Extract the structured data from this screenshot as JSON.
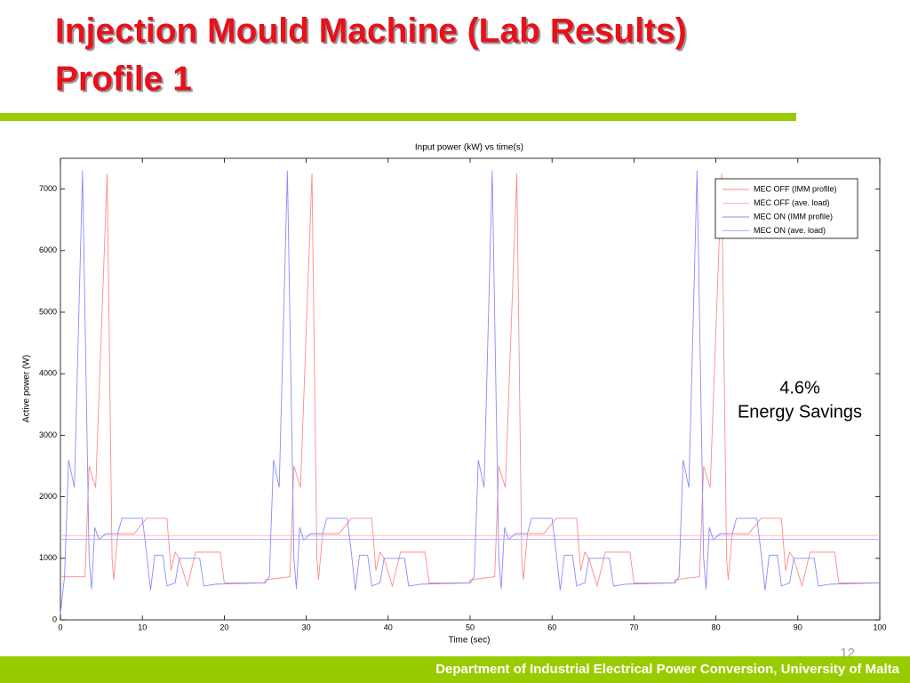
{
  "slide": {
    "title_lines": [
      "Injection Mould Machine (Lab Results)",
      "Profile 1"
    ],
    "footer": "Department of Industrial Electrical Power Conversion, University of Malta",
    "page_number": "12"
  },
  "chart_data": {
    "type": "line",
    "title": "Input power (kW) vs time(s)",
    "x_label": "Time (sec)",
    "y_label": "Active power (W)",
    "xlim": [
      0,
      100
    ],
    "xticks": [
      0,
      10,
      20,
      30,
      40,
      50,
      60,
      70,
      80,
      90,
      100
    ],
    "ylim": [
      0,
      7500
    ],
    "yticks": [
      0,
      1000,
      2000,
      3000,
      4000,
      5000,
      6000,
      7000
    ],
    "grid": false,
    "legend": "top-right",
    "annotations": [
      "4.6%",
      "Energy Savings"
    ],
    "series": [
      {
        "name": "MEC OFF (IMM profile)",
        "color": "#ff8a8a",
        "x": [
          0,
          3,
          3.5,
          4.3,
          5.7,
          6.3,
          6.5,
          7,
          9,
          10.5,
          13,
          13.5,
          14,
          14.5,
          15.5,
          16.5,
          19.5,
          20,
          24.9,
          25,
          28,
          28.5,
          29.3,
          30.7,
          31.3,
          31.5,
          32,
          34,
          35.5,
          38,
          38.5,
          39,
          39.5,
          40.5,
          41.5,
          44.5,
          45,
          49.9,
          50,
          53,
          53.5,
          54.3,
          55.7,
          56.3,
          56.5,
          57,
          59,
          60.5,
          63,
          63.5,
          64,
          64.5,
          65.5,
          66.5,
          69.5,
          70,
          74.9,
          75,
          78,
          78.5,
          79.3,
          80.7,
          81.3,
          81.5,
          82,
          84,
          85.5,
          88,
          88.5,
          89,
          89.5,
          90.5,
          91.5,
          94.5,
          95,
          99.9
        ],
        "values": [
          700,
          700,
          2500,
          2150,
          7250,
          1000,
          650,
          1400,
          1400,
          1650,
          1650,
          800,
          1100,
          1000,
          550,
          1100,
          1100,
          600,
          600,
          650,
          700,
          2500,
          2150,
          7250,
          1000,
          650,
          1400,
          1400,
          1650,
          1650,
          800,
          1100,
          1000,
          550,
          1100,
          1100,
          600,
          600,
          650,
          700,
          2500,
          2150,
          7250,
          1000,
          650,
          1400,
          1400,
          1650,
          1650,
          800,
          1100,
          1000,
          550,
          1100,
          1100,
          600,
          600,
          650,
          700,
          2500,
          2150,
          7250,
          1000,
          650,
          1400,
          1400,
          1650,
          1650,
          800,
          1100,
          1000,
          550,
          1100,
          1100,
          600,
          600
        ]
      },
      {
        "name": "MEC OFF (ave. load)",
        "color": "#ffb0b0",
        "x": [
          0,
          100
        ],
        "values": [
          1370,
          1370
        ]
      },
      {
        "name": "MEC ON (IMM profile)",
        "color": "#8a8aff",
        "x": [
          0,
          0.5,
          1,
          1.7,
          2.7,
          3.5,
          3.8,
          4.2,
          4.7,
          5.5,
          7,
          7.5,
          10,
          10.5,
          11,
          11.5,
          12.5,
          13,
          14,
          14.5,
          17,
          17.5,
          19,
          24.9,
          25,
          25.5,
          26,
          26.7,
          27.7,
          28.5,
          28.8,
          29.2,
          29.7,
          30.5,
          32,
          32.5,
          35,
          35.5,
          36,
          36.5,
          37.5,
          38,
          39,
          39.5,
          42,
          42.5,
          44,
          49.9,
          50,
          50.5,
          51,
          51.7,
          52.7,
          53.5,
          53.8,
          54.2,
          54.7,
          55.5,
          57,
          57.5,
          60,
          60.5,
          61,
          61.5,
          62.5,
          63,
          64,
          64.5,
          67,
          67.5,
          69,
          74.9,
          75,
          75.5,
          76,
          76.7,
          77.7,
          78.5,
          78.8,
          79.2,
          79.7,
          80.5,
          82,
          82.5,
          85,
          85.5,
          86,
          86.5,
          87.5,
          88,
          89,
          89.5,
          92,
          92.5,
          94,
          99.9
        ],
        "values": [
          100,
          700,
          2600,
          2150,
          7300,
          1000,
          500,
          1500,
          1300,
          1400,
          1400,
          1650,
          1650,
          1100,
          480,
          1050,
          1050,
          550,
          600,
          1000,
          1000,
          550,
          580,
          600,
          600,
          700,
          2600,
          2150,
          7300,
          1000,
          500,
          1500,
          1300,
          1400,
          1400,
          1650,
          1650,
          1100,
          480,
          1050,
          1050,
          550,
          600,
          1000,
          1000,
          550,
          580,
          600,
          600,
          700,
          2600,
          2150,
          7300,
          1000,
          500,
          1500,
          1300,
          1400,
          1400,
          1650,
          1650,
          1100,
          480,
          1050,
          1050,
          550,
          600,
          1000,
          1000,
          550,
          580,
          600,
          600,
          700,
          2600,
          2150,
          7300,
          1000,
          500,
          1500,
          1300,
          1400,
          1400,
          1650,
          1650,
          1100,
          480,
          1050,
          1050,
          550,
          600,
          1000,
          1000,
          550,
          580,
          600
        ]
      },
      {
        "name": "MEC ON (ave. load)",
        "color": "#b0b0ff",
        "x": [
          0,
          100
        ],
        "values": [
          1307,
          1307
        ]
      }
    ]
  }
}
